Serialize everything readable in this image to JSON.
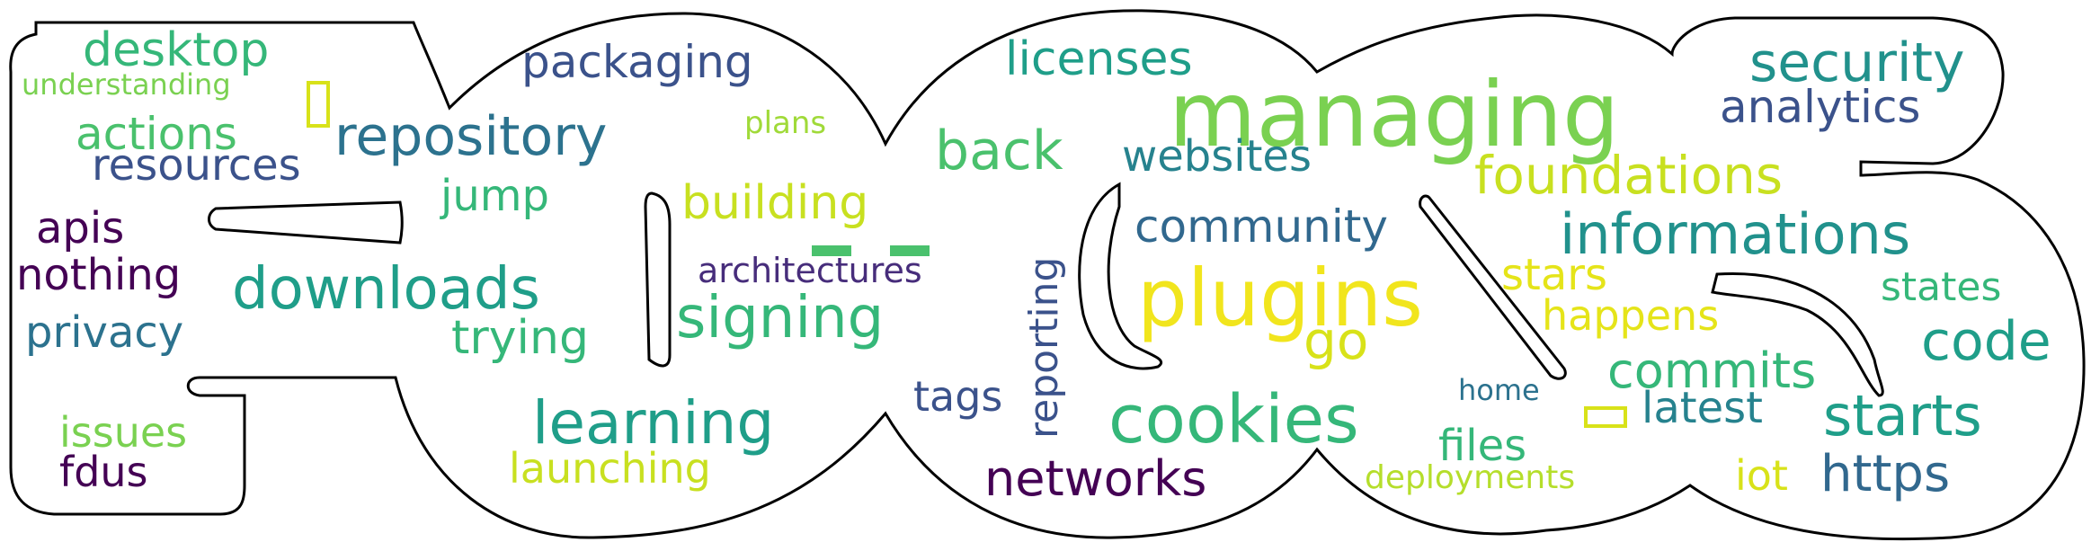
{
  "words": [
    {
      "text": "managing",
      "color": "#7ad151"
    },
    {
      "text": "plugins",
      "color": "#f1e51d"
    },
    {
      "text": "cookies",
      "color": "#35b779"
    },
    {
      "text": "downloads",
      "color": "#1f9e89"
    },
    {
      "text": "repository",
      "color": "#2c728e"
    },
    {
      "text": "signing",
      "color": "#35b779"
    },
    {
      "text": "learning",
      "color": "#1f9e89"
    },
    {
      "text": "security",
      "color": "#21918c"
    },
    {
      "text": "informations",
      "color": "#21918c"
    },
    {
      "text": "foundations",
      "color": "#c8e020"
    },
    {
      "text": "starts",
      "color": "#1f9e89"
    },
    {
      "text": "code",
      "color": "#1f9e89"
    },
    {
      "text": "back",
      "color": "#4ac16d"
    },
    {
      "text": "networks",
      "color": "#440154"
    },
    {
      "text": "https",
      "color": "#31688e"
    },
    {
      "text": "desktop",
      "color": "#35b779"
    },
    {
      "text": "licenses",
      "color": "#1f9e89"
    },
    {
      "text": "analytics",
      "color": "#3b528b"
    },
    {
      "text": "packaging",
      "color": "#3b528b"
    },
    {
      "text": "building",
      "color": "#c8e020"
    },
    {
      "text": "commits",
      "color": "#35b779"
    },
    {
      "text": "resources",
      "color": "#3b528b"
    },
    {
      "text": "actions",
      "color": "#4ac16d"
    },
    {
      "text": "community",
      "color": "#31688e"
    },
    {
      "text": "privacy",
      "color": "#2c728e"
    },
    {
      "text": "nothing",
      "color": "#440154"
    },
    {
      "text": "websites",
      "color": "#26828e"
    },
    {
      "text": "trying",
      "color": "#35b779"
    },
    {
      "text": "launching",
      "color": "#c8e020"
    },
    {
      "text": "go",
      "color": "#d8e219"
    },
    {
      "text": "latest",
      "color": "#26828e"
    },
    {
      "text": "reporting",
      "color": "#3b528b"
    },
    {
      "text": "files",
      "color": "#35b779"
    },
    {
      "text": "apis",
      "color": "#440154"
    },
    {
      "text": "issues",
      "color": "#7ad151"
    },
    {
      "text": "jump",
      "color": "#35b779"
    },
    {
      "text": "tags",
      "color": "#3b528b"
    },
    {
      "text": "happens",
      "color": "#e5e419"
    },
    {
      "text": "stars",
      "color": "#e5e419"
    },
    {
      "text": "fdus",
      "color": "#440154"
    },
    {
      "text": "states",
      "color": "#35b779"
    },
    {
      "text": "iot",
      "color": "#d8e219"
    },
    {
      "text": "architectures",
      "color": "#472d7b"
    },
    {
      "text": "deployments",
      "color": "#b5de2b"
    },
    {
      "text": "understanding",
      "color": "#7ad151"
    },
    {
      "text": "plans",
      "color": "#a0da39"
    },
    {
      "text": "home",
      "color": "#2c728e"
    }
  ],
  "boxes": [
    {
      "name": "tofu-box-yellow",
      "color": "#d8e219"
    },
    {
      "name": "tofu-box-green",
      "color": "#4ac16d"
    },
    {
      "name": "tofu-box-green-2",
      "color": "#4ac16d"
    },
    {
      "name": "tofu-box-yellow-2",
      "color": "#d8e219"
    }
  ]
}
